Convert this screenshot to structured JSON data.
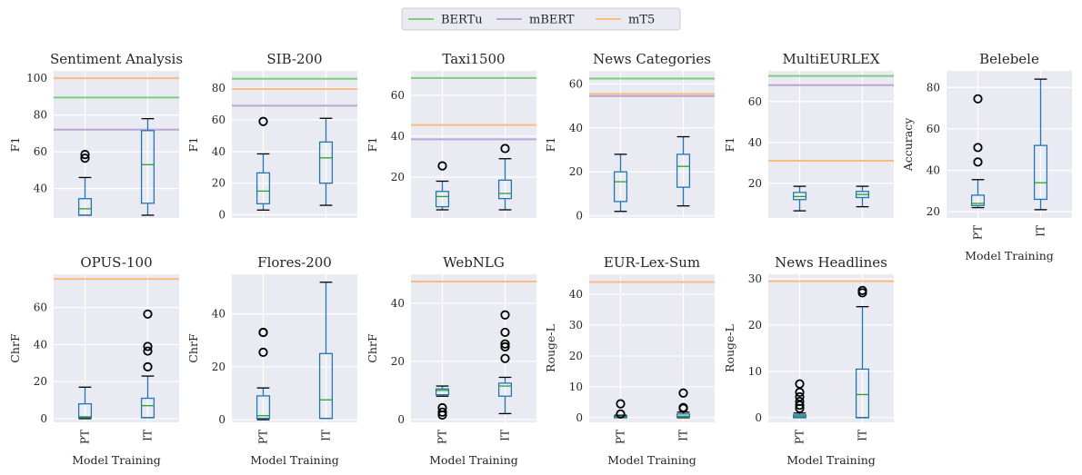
{
  "legend": [
    {
      "label": "BERTu",
      "color": "#7fcc7f"
    },
    {
      "label": "mBERT",
      "color": "#b7a7d6"
    },
    {
      "label": "mT5",
      "color": "#fdbb84"
    }
  ],
  "colors": {
    "box": "#1f77b4",
    "median": "#2ca02c",
    "panel_bg": "#eaeaf2",
    "grid": "#ffffff"
  },
  "chart_data": [
    {
      "type": "box",
      "title": "Sentiment Analysis",
      "ylabel": "F1",
      "xlabel": "",
      "ylim": [
        24,
        104
      ],
      "yticks": [
        40,
        60,
        80,
        100
      ],
      "categories": [
        "PT",
        "IT"
      ],
      "show_xticks": false,
      "boxes": [
        {
          "whislo": 25.5,
          "q1": 25.5,
          "med": 29,
          "q3": 34.5,
          "whishi": 46,
          "fliers": [
            56.5,
            58.5
          ]
        },
        {
          "whislo": 25.5,
          "q1": 32,
          "med": 53,
          "q3": 71.5,
          "whishi": 78,
          "fliers": []
        }
      ],
      "hlines": {
        "BERTu": 89.5,
        "mBERT": 72,
        "mT5": 100
      }
    },
    {
      "type": "box",
      "title": "SIB-200",
      "ylabel": "F1",
      "xlabel": "",
      "ylim": [
        -2,
        91
      ],
      "yticks": [
        0,
        20,
        40,
        60,
        80
      ],
      "categories": [
        "PT",
        "IT"
      ],
      "show_xticks": false,
      "boxes": [
        {
          "whislo": 3,
          "q1": 7,
          "med": 15,
          "q3": 26.5,
          "whishi": 38.5,
          "fliers": [
            59
          ]
        },
        {
          "whislo": 6,
          "q1": 20,
          "med": 36,
          "q3": 46,
          "whishi": 61,
          "fliers": []
        }
      ],
      "hlines": {
        "BERTu": 86,
        "mBERT": 69,
        "mT5": 79.5
      }
    },
    {
      "type": "box",
      "title": "Taxi1500",
      "ylabel": "F1",
      "xlabel": "",
      "ylim": [
        0,
        72
      ],
      "yticks": [
        20,
        40,
        60
      ],
      "categories": [
        "PT",
        "IT"
      ],
      "show_xticks": false,
      "boxes": [
        {
          "whislo": 4,
          "q1": 5.5,
          "med": 10.5,
          "q3": 13,
          "whishi": 18,
          "fliers": [
            25.5
          ]
        },
        {
          "whislo": 4,
          "q1": 9.5,
          "med": 12,
          "q3": 18.5,
          "whishi": 29,
          "fliers": [
            34
          ]
        }
      ],
      "hlines": {
        "BERTu": 68.5,
        "mBERT": 38.5,
        "mT5": 45.5
      }
    },
    {
      "type": "box",
      "title": "News Categories",
      "ylabel": "F1",
      "xlabel": "",
      "ylim": [
        -1,
        66
      ],
      "yticks": [
        0,
        20,
        40,
        60
      ],
      "categories": [
        "PT",
        "IT"
      ],
      "show_xticks": false,
      "boxes": [
        {
          "whislo": 2,
          "q1": 6.5,
          "med": 15.5,
          "q3": 20,
          "whishi": 28,
          "fliers": []
        },
        {
          "whislo": 4.5,
          "q1": 13,
          "med": 22.5,
          "q3": 28,
          "whishi": 36,
          "fliers": []
        }
      ],
      "hlines": {
        "BERTu": 62.5,
        "mBERT": 54.5,
        "mT5": 55.5
      }
    },
    {
      "type": "box",
      "title": "MultiEURLEX",
      "ylabel": "F1",
      "xlabel": "",
      "ylim": [
        3,
        75
      ],
      "yticks": [
        20,
        40,
        60
      ],
      "categories": [
        "PT",
        "IT"
      ],
      "show_xticks": false,
      "boxes": [
        {
          "whislo": 6.5,
          "q1": 12,
          "med": 13.5,
          "q3": 15.5,
          "whishi": 18.5,
          "fliers": []
        },
        {
          "whislo": 8.5,
          "q1": 13,
          "med": 14.5,
          "q3": 16,
          "whishi": 18.5,
          "fliers": []
        }
      ],
      "hlines": {
        "BERTu": 72.5,
        "mBERT": 68,
        "mT5": 31
      }
    },
    {
      "type": "box",
      "title": "Belebele",
      "ylabel": "Accuracy",
      "xlabel": "Model Training",
      "ylim": [
        17,
        88
      ],
      "yticks": [
        20,
        40,
        60,
        80
      ],
      "categories": [
        "PT",
        "IT"
      ],
      "show_xticks": true,
      "boxes": [
        {
          "whislo": 22,
          "q1": 23,
          "med": 24,
          "q3": 28,
          "whishi": 35.5,
          "fliers": [
            44,
            51,
            74.5
          ]
        },
        {
          "whislo": 21,
          "q1": 26,
          "med": 34,
          "q3": 52,
          "whishi": 84,
          "fliers": []
        }
      ],
      "hlines": {}
    },
    {
      "type": "box",
      "title": "OPUS-100",
      "ylabel": "ChrF",
      "xlabel": "Model Training",
      "ylim": [
        -2,
        78
      ],
      "yticks": [
        0,
        20,
        40,
        60
      ],
      "categories": [
        "PT",
        "IT"
      ],
      "show_xticks": true,
      "boxes": [
        {
          "whislo": 0,
          "q1": 0.5,
          "med": 1,
          "q3": 8,
          "whishi": 17,
          "fliers": []
        },
        {
          "whislo": 0.5,
          "q1": 0.5,
          "med": 7,
          "q3": 11,
          "whishi": 23,
          "fliers": [
            28,
            36.5,
            39,
            56.5
          ]
        }
      ],
      "hlines": {
        "mT5": 75.5
      }
    },
    {
      "type": "box",
      "title": "Flores-200",
      "ylabel": "ChrF",
      "xlabel": "Model Training",
      "ylim": [
        -1,
        55
      ],
      "yticks": [
        0,
        20,
        40
      ],
      "categories": [
        "PT",
        "IT"
      ],
      "show_xticks": true,
      "boxes": [
        {
          "whislo": 0,
          "q1": 0.5,
          "med": 1.5,
          "q3": 9,
          "whishi": 12,
          "fliers": [
            25.5,
            33,
            33
          ]
        },
        {
          "whislo": 0.5,
          "q1": 0.5,
          "med": 7.5,
          "q3": 25,
          "whishi": 52,
          "fliers": []
        }
      ],
      "hlines": {}
    },
    {
      "type": "box",
      "title": "WebNLG",
      "ylabel": "ChrF",
      "xlabel": "Model Training",
      "ylim": [
        -1,
        50
      ],
      "yticks": [
        0,
        20,
        40
      ],
      "categories": [
        "PT",
        "IT"
      ],
      "show_xticks": true,
      "boxes": [
        {
          "whislo": 8,
          "q1": 8.5,
          "med": 10,
          "q3": 10.5,
          "whishi": 11.5,
          "fliers": [
            1.5,
            2.5,
            4
          ]
        },
        {
          "whislo": 2,
          "q1": 8,
          "med": 11.5,
          "q3": 12.5,
          "whishi": 14.5,
          "fliers": [
            21,
            25,
            26,
            30,
            36
          ]
        }
      ],
      "hlines": {
        "mT5": 47.5
      }
    },
    {
      "type": "box",
      "title": "EUR-Lex-Sum",
      "ylabel": "Rouge-L",
      "xlabel": "Model Training",
      "ylim": [
        -1.5,
        46.5
      ],
      "yticks": [
        0,
        10,
        20,
        30,
        40
      ],
      "categories": [
        "PT",
        "IT"
      ],
      "show_xticks": true,
      "boxes": [
        {
          "whislo": 0,
          "q1": 0,
          "med": 0.2,
          "q3": 0.5,
          "whishi": 0.8,
          "fliers": [
            1.2,
            4.5
          ]
        },
        {
          "whislo": 0,
          "q1": 0.2,
          "med": 0.5,
          "q3": 1.2,
          "whishi": 1.8,
          "fliers": [
            3,
            3.3,
            8
          ]
        }
      ],
      "hlines": {
        "mT5": 44
      }
    },
    {
      "type": "box",
      "title": "News Headlines",
      "ylabel": "Rouge-L",
      "xlabel": "Model Training",
      "ylim": [
        -1,
        31
      ],
      "yticks": [
        0,
        10,
        20,
        30
      ],
      "categories": [
        "PT",
        "IT"
      ],
      "show_xticks": true,
      "boxes": [
        {
          "whislo": 0,
          "q1": 0,
          "med": 0.3,
          "q3": 0.6,
          "whishi": 1,
          "fliers": [
            2,
            2.7,
            3.5,
            4.5,
            5.5,
            7.3
          ]
        },
        {
          "whislo": 0,
          "q1": 0,
          "med": 5,
          "q3": 10.5,
          "whishi": 24,
          "fliers": [
            27,
            27.5
          ]
        }
      ],
      "hlines": {
        "mT5": 29.5
      }
    }
  ]
}
